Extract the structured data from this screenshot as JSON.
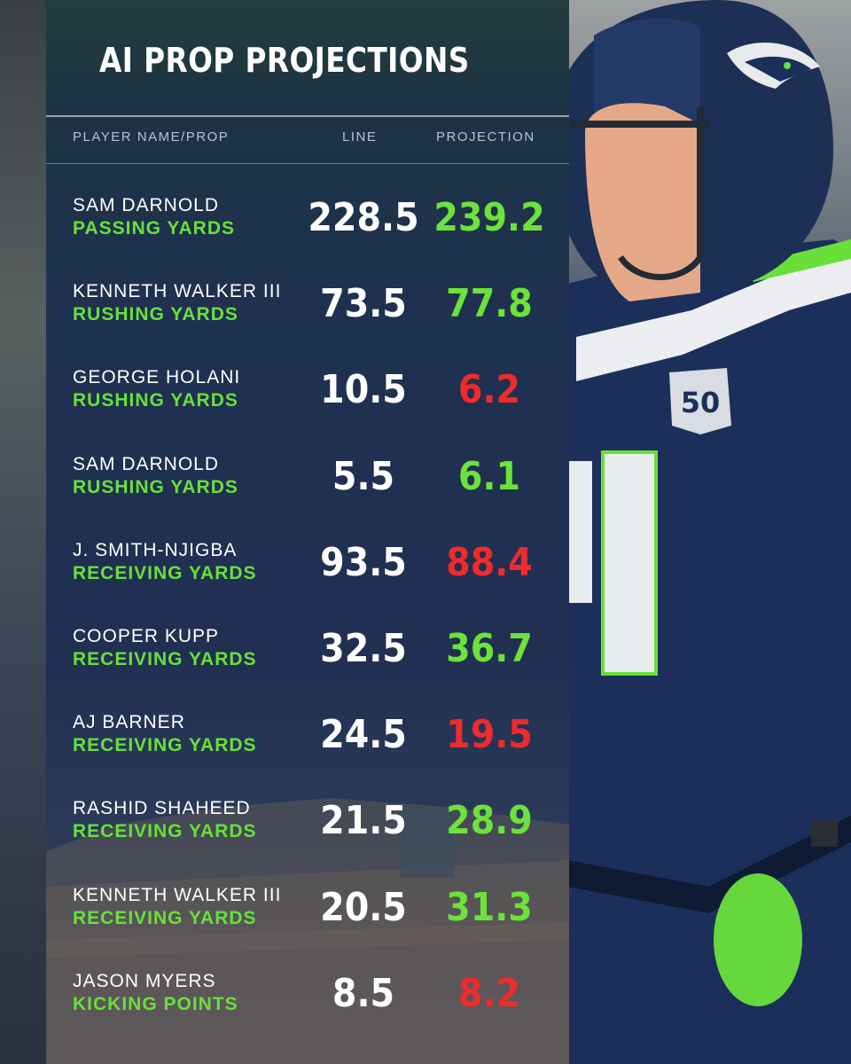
{
  "title": "AI PROP PROJECTIONS",
  "headers": {
    "player": "PLAYER NAME/PROP",
    "line": "LINE",
    "projection": "PROJECTION"
  },
  "colors": {
    "accent_green": "#69e03a",
    "under_red": "#ef2b2b",
    "panel_navy": "#1f3150"
  },
  "rows": [
    {
      "player": "SAM DARNOLD",
      "prop": "PASSING YARDS",
      "line": "228.5",
      "projection": "239.2",
      "trend": "up"
    },
    {
      "player": "KENNETH WALKER III",
      "prop": "RUSHING YARDS",
      "line": "73.5",
      "projection": "77.8",
      "trend": "up"
    },
    {
      "player": "GEORGE HOLANI",
      "prop": "RUSHING YARDS",
      "line": "10.5",
      "projection": "6.2",
      "trend": "down"
    },
    {
      "player": "SAM DARNOLD",
      "prop": "RUSHING YARDS",
      "line": "5.5",
      "projection": "6.1",
      "trend": "up"
    },
    {
      "player": "J. SMITH-NJIGBA",
      "prop": "RECEIVING YARDS",
      "line": "93.5",
      "projection": "88.4",
      "trend": "down"
    },
    {
      "player": "COOPER KUPP",
      "prop": "RECEIVING YARDS",
      "line": "32.5",
      "projection": "36.7",
      "trend": "up"
    },
    {
      "player": "AJ BARNER",
      "prop": "RECEIVING YARDS",
      "line": "24.5",
      "projection": "19.5",
      "trend": "down"
    },
    {
      "player": "RASHID SHAHEED",
      "prop": "RECEIVING YARDS",
      "line": "21.5",
      "projection": "28.9",
      "trend": "up"
    },
    {
      "player": "KENNETH WALKER III",
      "prop": "RECEIVING YARDS",
      "line": "20.5",
      "projection": "31.3",
      "trend": "up"
    },
    {
      "player": "JASON MYERS",
      "prop": "KICKING POINTS",
      "line": "8.5",
      "projection": "8.2",
      "trend": "down"
    }
  ],
  "photo": {
    "jersey_patch_number": "50"
  }
}
